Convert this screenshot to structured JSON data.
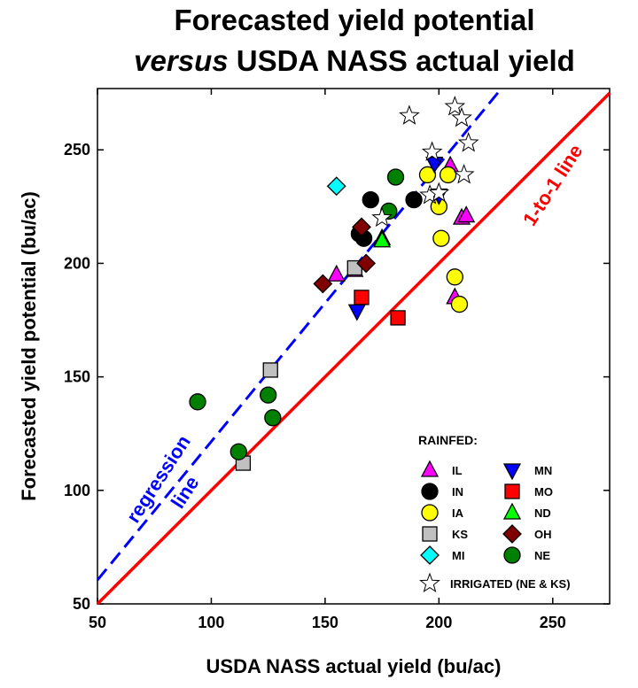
{
  "chart_data": {
    "type": "scatter",
    "title_line1": "Forecasted yield potential",
    "title_line2_italic": "versus",
    "title_line2_rest": " USDA NASS actual yield",
    "xlabel": "USDA NASS actual yield (bu/ac)",
    "ylabel": "Forecasted yield potential (bu/ac)",
    "xlim": [
      50,
      275
    ],
    "ylim": [
      50,
      277
    ],
    "xticks": [
      50,
      100,
      150,
      200,
      250
    ],
    "yticks": [
      50,
      100,
      150,
      200,
      250
    ],
    "one_to_one_label": "1-to-1 line",
    "regression_label_1": "regression",
    "regression_label_2": "line",
    "regression": {
      "slope": 1.22,
      "intercept": -0.5
    },
    "colors": {
      "one_to_one": "#ff0000",
      "regression": "#0000ff"
    },
    "legend_title": "RAINFED:",
    "irrigated_label": "IRRIGATED (NE & KS)",
    "series": [
      {
        "name": "IL",
        "marker": "triangle-up",
        "color": "#ff00ff",
        "points": [
          [
            155,
            195
          ],
          [
            163,
            197
          ],
          [
            175,
            211
          ],
          [
            205,
            243
          ],
          [
            207,
            185
          ],
          [
            210,
            220
          ],
          [
            212,
            221
          ]
        ]
      },
      {
        "name": "IN",
        "marker": "circle",
        "color": "#000000",
        "points": [
          [
            165,
            213
          ],
          [
            167,
            211
          ],
          [
            170,
            228
          ],
          [
            189,
            228
          ]
        ]
      },
      {
        "name": "IA",
        "marker": "circle",
        "color": "#ffff00",
        "points": [
          [
            195,
            239
          ],
          [
            200,
            225
          ],
          [
            201,
            211
          ],
          [
            204,
            239
          ],
          [
            207,
            194
          ],
          [
            209,
            182
          ]
        ]
      },
      {
        "name": "KS",
        "marker": "square",
        "color": "#c0c0c0",
        "points": [
          [
            114,
            112
          ],
          [
            126,
            153
          ],
          [
            163,
            198
          ]
        ]
      },
      {
        "name": "MI",
        "marker": "diamond",
        "color": "#00ffff",
        "points": [
          [
            155,
            234
          ]
        ]
      },
      {
        "name": "MN",
        "marker": "triangle-down",
        "color": "#0000ff",
        "points": [
          [
            164,
            179
          ],
          [
            198,
            244
          ],
          [
            200,
            230
          ]
        ]
      },
      {
        "name": "MO",
        "marker": "square",
        "color": "#ff0000",
        "points": [
          [
            166,
            185
          ],
          [
            182,
            176
          ]
        ]
      },
      {
        "name": "ND",
        "marker": "triangle-up",
        "color": "#00ff00",
        "points": [
          [
            175,
            210
          ]
        ]
      },
      {
        "name": "OH",
        "marker": "diamond",
        "color": "#800000",
        "points": [
          [
            149,
            191
          ],
          [
            166,
            216
          ],
          [
            168,
            200
          ]
        ]
      },
      {
        "name": "NE",
        "marker": "circle",
        "color": "#008000",
        "points": [
          [
            94,
            139
          ],
          [
            112,
            117
          ],
          [
            125,
            142
          ],
          [
            127,
            132
          ],
          [
            178,
            223
          ],
          [
            181,
            238
          ]
        ]
      }
    ],
    "irrigated": {
      "name": "IRRIGATED (NE & KS)",
      "marker": "star",
      "color": "#ffffff",
      "points": [
        [
          175,
          220
        ],
        [
          187,
          265
        ],
        [
          196,
          230
        ],
        [
          197,
          249
        ],
        [
          200,
          231
        ],
        [
          207,
          269
        ],
        [
          210,
          264
        ],
        [
          211,
          239
        ],
        [
          213,
          253
        ]
      ]
    }
  }
}
